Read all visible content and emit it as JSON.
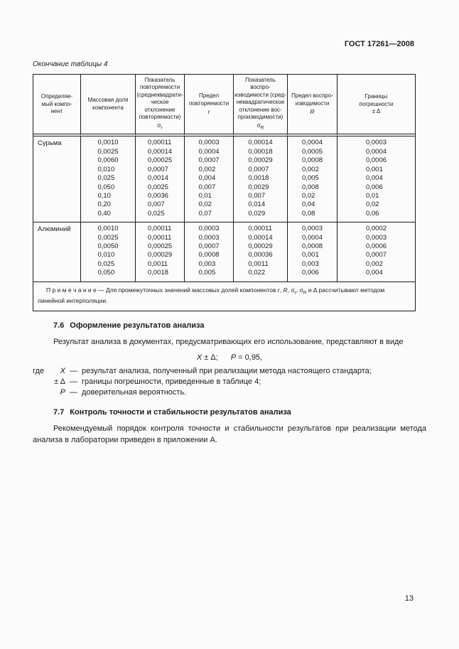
{
  "header": {
    "doc_number": "ГОСТ 17261—2008"
  },
  "table": {
    "caption": "Окончание таблицы 4",
    "columns": [
      {
        "lines": [
          "Определяе-",
          "мый компо-",
          "нент"
        ]
      },
      {
        "lines": [
          "Массовая доля",
          "компонента"
        ]
      },
      {
        "lines": [
          "Показатель",
          "повторяемости",
          "(среднеквадрати-",
          "ческое",
          "отклонение",
          "повторяемости)"
        ],
        "symbol": {
          "base": "σ",
          "sub": "r",
          "italic": false
        }
      },
      {
        "lines": [
          "Предел",
          "повторяемости"
        ],
        "symbol": {
          "base": "r",
          "italic": true
        }
      },
      {
        "lines": [
          "Показатель воспро-",
          "изводимости (сред-",
          "неквадратическое",
          "отклонение вос-",
          "производимости)"
        ],
        "symbol": {
          "base": "σ",
          "sub": "R",
          "italic": false
        }
      },
      {
        "lines": [
          "Предел воспро-",
          "изводимости"
        ],
        "symbol": {
          "base": "R",
          "italic": true
        }
      },
      {
        "lines": [
          "Границы",
          "погрешности",
          "± Δ"
        ]
      }
    ],
    "groups": [
      {
        "component": "Сурьма",
        "rows": [
          [
            "0,0010",
            "0,00011",
            "0,0003",
            "0,00014",
            "0,0004",
            "0,0003"
          ],
          [
            "0,0025",
            "0,00014",
            "0,0004",
            "0,00018",
            "0,0005",
            "0,0004"
          ],
          [
            "0,0060",
            "0,00025",
            "0,0007",
            "0,00029",
            "0,0008",
            "0,0006"
          ],
          [
            "0,010",
            "0,0007",
            "0,002",
            "0,0007",
            "0,002",
            "0,001"
          ],
          [
            "0,025",
            "0,0014",
            "0,004",
            "0,0018",
            "0,005",
            "0,004"
          ],
          [
            "0,050",
            "0,0025",
            "0,007",
            "0,0029",
            "0,008",
            "0,006"
          ],
          [
            "0,10",
            "0,0036",
            "0,01",
            "0,007",
            "0,02",
            "0,01"
          ],
          [
            "0,20",
            "0,007",
            "0,02",
            "0,014",
            "0,04",
            "0,02"
          ],
          [
            "0,40",
            "0,025",
            "0,07",
            "0,029",
            "0,08",
            "0,06"
          ]
        ]
      },
      {
        "component": "Алюминий",
        "rows": [
          [
            "0,0010",
            "0,00011",
            "0,0003",
            "0,00011",
            "0,0003",
            "0,0002"
          ],
          [
            "0,0025",
            "0,00011",
            "0,0003",
            "0,00014",
            "0,0004",
            "0,0003"
          ],
          [
            "0,0050",
            "0,00025",
            "0,0007",
            "0,00029",
            "0,0008",
            "0,0006"
          ],
          [
            "0,010",
            "0,00029",
            "0,0008",
            "0,00036",
            "0,001",
            "0,0007"
          ],
          [
            "0,025",
            "0,0011",
            "0,003",
            "0,0011",
            "0,003",
            "0,002"
          ],
          [
            "0,050",
            "0,0018",
            "0,005",
            "0,022",
            "0,006",
            "0,004"
          ]
        ]
      }
    ],
    "note_segments": [
      {
        "t": "П р и м е ч а н и е — Для промежуточных значений массовых долей компонентов "
      },
      {
        "t": "r",
        "style": "i"
      },
      {
        "t": ", "
      },
      {
        "t": "R",
        "style": "i"
      },
      {
        "t": ", σ"
      },
      {
        "t": "r",
        "style": "sub"
      },
      {
        "t": ", σ"
      },
      {
        "t": "R",
        "style": "sub"
      },
      {
        "t": " и Δ рассчитывают методом линейной интерполяции."
      }
    ]
  },
  "sections": {
    "s76": {
      "num": "7.6",
      "title": "Оформление результатов анализа",
      "intro": "Результат анализа в документах, предусматривающих его использование, представляют в виде",
      "formula": {
        "x": "X",
        "pm": " ± Δ;",
        "p": "P",
        "eq": " = 0,95,"
      },
      "where": {
        "lead": "где",
        "dash": "—",
        "items": [
          {
            "term": "X",
            "italic": true,
            "def": "результат анализа, полученный при реализации метода настоящего стандарта;"
          },
          {
            "term": "± Δ",
            "italic": false,
            "def": "границы погрешности, приведенные в таблице 4;"
          },
          {
            "term": "P",
            "italic": true,
            "def": "доверительная вероятность."
          }
        ]
      }
    },
    "s77": {
      "num": "7.7",
      "title": "Контроль точности и стабильности результатов анализа",
      "body": "Рекомендуемый порядок контроля точности и стабильности результатов при реализации метода анализа в лаборатории приведен в приложении А."
    }
  },
  "footer": {
    "page_number": "13"
  }
}
